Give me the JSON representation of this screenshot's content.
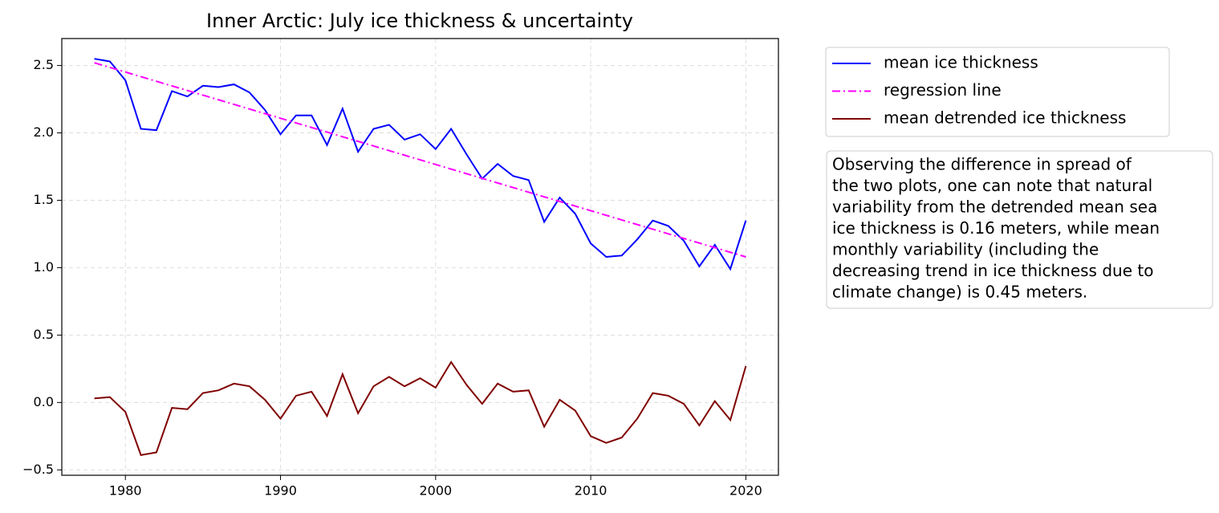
{
  "chart_data": {
    "type": "line",
    "title": "Inner Arctic: July ice thickness & uncertainty",
    "x": [
      1978,
      1979,
      1980,
      1981,
      1982,
      1983,
      1984,
      1985,
      1986,
      1987,
      1988,
      1989,
      1990,
      1991,
      1992,
      1993,
      1994,
      1995,
      1996,
      1997,
      1998,
      1999,
      2000,
      2001,
      2002,
      2003,
      2004,
      2005,
      2006,
      2007,
      2008,
      2009,
      2010,
      2011,
      2012,
      2013,
      2014,
      2015,
      2016,
      2017,
      2018,
      2019,
      2020
    ],
    "series": [
      {
        "name": "mean ice thickness",
        "color": "#0000ff",
        "style": "solid",
        "values": [
          2.55,
          2.53,
          2.39,
          2.03,
          2.02,
          2.31,
          2.27,
          2.35,
          2.34,
          2.36,
          2.3,
          2.17,
          1.99,
          2.13,
          2.13,
          1.91,
          2.18,
          1.86,
          2.03,
          2.06,
          1.95,
          1.99,
          1.88,
          2.03,
          1.84,
          1.66,
          1.77,
          1.68,
          1.65,
          1.34,
          1.52,
          1.4,
          1.18,
          1.08,
          1.09,
          1.21,
          1.35,
          1.31,
          1.2,
          1.01,
          1.17,
          0.99,
          1.35
        ]
      },
      {
        "name": "regression line",
        "color": "#ff00ff",
        "style": "dashdot",
        "x": [
          1978,
          2020
        ],
        "values": [
          2.52,
          1.08
        ]
      },
      {
        "name": "mean detrended ice thickness",
        "color": "#800000",
        "style": "solid",
        "values": [
          0.03,
          0.04,
          -0.07,
          -0.39,
          -0.37,
          -0.04,
          -0.05,
          0.07,
          0.09,
          0.14,
          0.12,
          0.02,
          -0.12,
          0.05,
          0.08,
          -0.1,
          0.21,
          -0.08,
          0.12,
          0.19,
          0.12,
          0.18,
          0.11,
          0.3,
          0.13,
          -0.01,
          0.14,
          0.08,
          0.09,
          -0.18,
          0.02,
          -0.06,
          -0.25,
          -0.3,
          -0.26,
          -0.12,
          0.07,
          0.05,
          -0.01,
          -0.17,
          0.01,
          -0.13,
          0.27
        ]
      }
    ],
    "xlim": [
      1975.9,
      2022.1
    ],
    "xticks": [
      1980,
      1990,
      2000,
      2010,
      2020
    ],
    "ylim": [
      -0.54,
      2.7
    ],
    "yticks": [
      {
        "value": -0.5,
        "label": "−0.5"
      },
      {
        "value": 0,
        "label": "0.0"
      },
      0.5,
      {
        "value": 1,
        "label": "1.0"
      },
      1.5,
      {
        "value": 2,
        "label": "2.0"
      },
      2.5
    ],
    "grid": true,
    "legend": "outside upper right",
    "annotation": [
      "Observing the difference in spread of",
      "the two plots, one can note that natural",
      "variability from the detrended mean sea",
      "ice thickness is 0.16 meters, while mean",
      "monthly variability (including the",
      "decreasing trend in ice thickness due to",
      "climate change) is 0.45 meters."
    ]
  }
}
